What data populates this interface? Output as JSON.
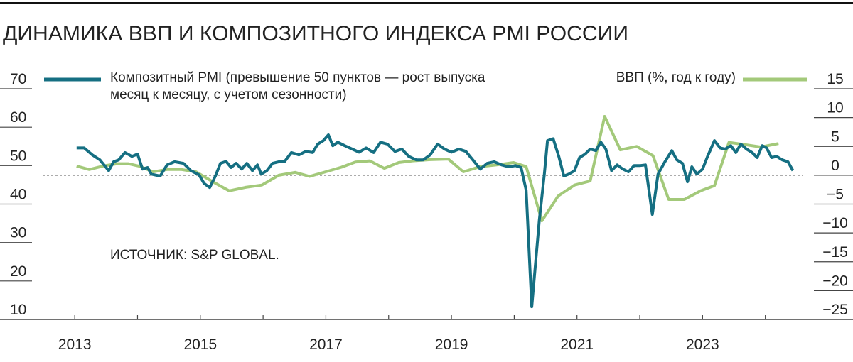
{
  "chart_data": {
    "type": "line",
    "title": "ДИНАМИКА ВВП И КОМПОЗИТНОГО ИНДЕКСА PMI РОССИИ",
    "source": "ИСТОЧНИК: S&P GLOBAL.",
    "xlim": [
      2012.5,
      2025
    ],
    "xticks": [
      2013,
      2015,
      2017,
      2019,
      2021,
      2023
    ],
    "xminorticks": [
      2014,
      2016,
      2018,
      2020,
      2022,
      2024
    ],
    "ylim": [
      10,
      70
    ],
    "yticks": [
      10,
      20,
      30,
      40,
      50,
      60,
      70
    ],
    "y2lim": [
      -25,
      15
    ],
    "y2ticks": [
      {
        "value": -25,
        "label": "−25"
      },
      {
        "value": -20,
        "label": "−20"
      },
      {
        "value": -15,
        "label": "−15"
      },
      {
        "value": -10,
        "label": "−10"
      },
      {
        "value": -5,
        "label": "−5"
      },
      0,
      5,
      10,
      15
    ],
    "series": [
      {
        "name": "Композитный PMI (превышение 50 пунктов — рост выпуска месяц к месяцу, с учетом сезонности)",
        "color": "#156f82",
        "axis": "y",
        "x": [
          2013.03,
          2013.15,
          2013.28,
          2013.4,
          2013.54,
          2013.62,
          2013.7,
          2013.8,
          2013.91,
          2014.0,
          2014.08,
          2014.16,
          2014.22,
          2014.36,
          2014.47,
          2014.59,
          2014.73,
          2014.85,
          2014.98,
          2015.06,
          2015.15,
          2015.24,
          2015.32,
          2015.41,
          2015.49,
          2015.57,
          2015.66,
          2015.74,
          2015.83,
          2015.91,
          2015.97,
          2016.06,
          2016.15,
          2016.25,
          2016.34,
          2016.45,
          2016.57,
          2016.68,
          2016.79,
          2016.87,
          2016.96,
          2017.04,
          2017.11,
          2017.19,
          2017.3,
          2017.42,
          2017.53,
          2017.64,
          2017.76,
          2017.87,
          2017.98,
          2018.1,
          2018.21,
          2018.32,
          2018.44,
          2018.55,
          2018.66,
          2018.78,
          2018.89,
          2019.0,
          2019.12,
          2019.23,
          2019.34,
          2019.46,
          2019.57,
          2019.68,
          2019.8,
          2019.91,
          2020.02,
          2020.11,
          2020.19,
          2020.28,
          2020.4,
          2020.48,
          2020.53,
          2020.62,
          2020.71,
          2020.79,
          2020.87,
          2020.96,
          2021.04,
          2021.13,
          2021.21,
          2021.3,
          2021.38,
          2021.46,
          2021.55,
          2021.64,
          2021.73,
          2021.82,
          2021.91,
          2022.0,
          2022.09,
          2022.2,
          2022.29,
          2022.4,
          2022.51,
          2022.59,
          2022.68,
          2022.76,
          2022.83,
          2022.91,
          2023.0,
          2023.08,
          2023.19,
          2023.28,
          2023.36,
          2023.45,
          2023.53,
          2023.61,
          2023.7,
          2023.79,
          2023.87,
          2023.95,
          2024.02,
          2024.1,
          2024.18,
          2024.27,
          2024.36,
          2024.44
        ],
        "values": [
          54.6,
          54.6,
          52.8,
          51.5,
          48.7,
          51.0,
          51.5,
          53.4,
          52.4,
          53.0,
          49.1,
          49.5,
          47.8,
          47.3,
          50.2,
          51.0,
          50.6,
          48.7,
          47.6,
          45.4,
          44.3,
          47.3,
          50.6,
          51.1,
          49.5,
          50.6,
          49.1,
          50.6,
          48.7,
          50.2,
          47.8,
          48.7,
          50.6,
          51.0,
          51.0,
          53.4,
          52.8,
          53.7,
          53.4,
          55.6,
          56.5,
          58.0,
          55.2,
          56.1,
          55.2,
          54.3,
          53.5,
          54.6,
          53.4,
          56.1,
          55.6,
          53.7,
          54.3,
          52.4,
          51.5,
          51.5,
          52.8,
          55.6,
          54.3,
          53.5,
          54.3,
          53.7,
          51.5,
          49.1,
          50.6,
          51.0,
          50.2,
          49.7,
          50.0,
          49.5,
          43.6,
          13.3,
          35.8,
          47.8,
          56.5,
          57.0,
          52.4,
          47.3,
          47.8,
          48.7,
          52.1,
          53.0,
          54.3,
          53.9,
          56.1,
          54.3,
          48.7,
          50.2,
          49.1,
          48.4,
          50.0,
          50.0,
          50.2,
          37.3,
          47.8,
          51.0,
          53.9,
          51.5,
          50.6,
          45.8,
          49.7,
          47.8,
          49.1,
          52.4,
          56.5,
          54.6,
          54.3,
          55.2,
          53.4,
          55.6,
          54.3,
          53.4,
          52.1,
          55.2,
          54.6,
          52.1,
          52.4,
          51.5,
          51.0,
          48.7
        ]
      },
      {
        "name": "ВВП (%, год к году)",
        "color": "#a3c97a",
        "axis": "y2",
        "x": [
          2013.03,
          2013.23,
          2013.45,
          2013.68,
          2013.85,
          2014.02,
          2014.25,
          2014.47,
          2014.7,
          2014.93,
          2015.21,
          2015.46,
          2015.72,
          2015.98,
          2016.25,
          2016.51,
          2016.74,
          2017.0,
          2017.25,
          2017.47,
          2017.7,
          2017.93,
          2018.16,
          2018.38,
          2018.66,
          2018.95,
          2019.19,
          2019.46,
          2019.72,
          2019.99,
          2020.19,
          2020.44,
          2020.7,
          2020.96,
          2021.21,
          2021.44,
          2021.69,
          2021.95,
          2022.21,
          2022.46,
          2022.71,
          2022.97,
          2023.19,
          2023.42,
          2023.68,
          2023.93,
          2024.21
        ],
        "values": [
          1.6,
          1.0,
          1.6,
          2.0,
          2.0,
          1.6,
          0.6,
          1.0,
          1.0,
          0.6,
          -1.2,
          -2.7,
          -2.1,
          -1.7,
          0.0,
          0.5,
          -0.2,
          0.6,
          1.4,
          2.3,
          2.5,
          1.2,
          2.2,
          2.5,
          2.7,
          2.8,
          0.6,
          1.5,
          1.8,
          2.2,
          1.5,
          -7.9,
          -3.6,
          -1.7,
          -1.0,
          10.2,
          4.4,
          5.0,
          3.4,
          -4.2,
          -4.2,
          -2.7,
          -1.8,
          5.7,
          5.3,
          4.9,
          5.5
        ]
      }
    ]
  }
}
